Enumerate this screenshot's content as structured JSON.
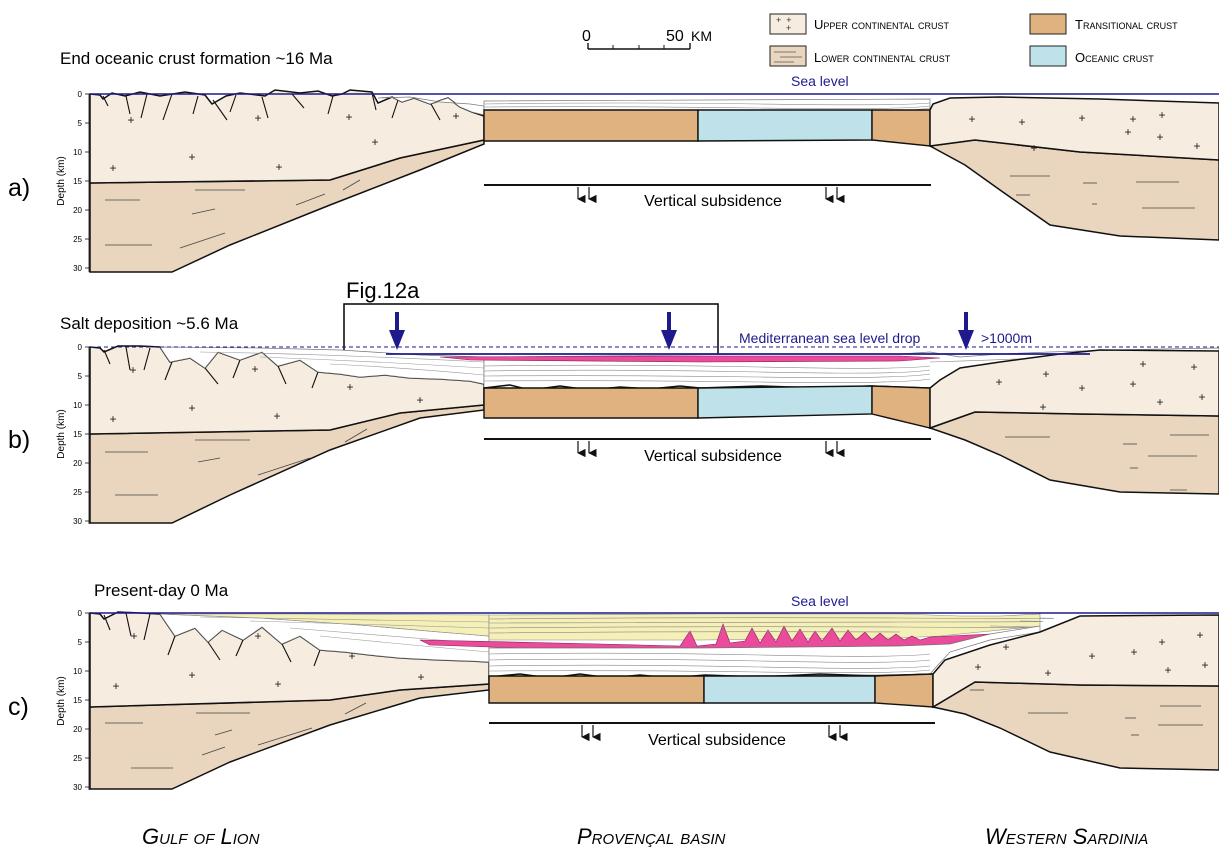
{
  "scale_bar": {
    "start": "0",
    "end": "50",
    "unit": "KM"
  },
  "legend": [
    {
      "key": "upper",
      "label": "Upper continental crust",
      "color": "#f6ede0"
    },
    {
      "key": "lower",
      "label": "Lower continental crust",
      "color": "#ead6bf"
    },
    {
      "key": "transitional",
      "label": "Transitional crust",
      "color": "#e0b27f"
    },
    {
      "key": "oceanic",
      "label": "Oceanic crust",
      "color": "#bfe2ea"
    }
  ],
  "colors": {
    "sea_line": "#1e1a8c",
    "salt": "#ea4b9a",
    "post_salt_sediment": "#f5f0b8",
    "syn_rift_sediment": "#ffffff"
  },
  "axis": {
    "ylabel": "Depth (km)",
    "ticks": [
      "0",
      "5",
      "10",
      "15",
      "20",
      "25",
      "30"
    ]
  },
  "panels": [
    {
      "letter": "a)",
      "title": "End oceanic crust formation ~16 Ma",
      "sea_label": "Sea level",
      "subsidence_label": "Vertical subsidence"
    },
    {
      "letter": "b)",
      "title": "Salt deposition ~5.6 Ma",
      "sea_label": "Mediterranean sea level drop",
      "sea_label_extra": ">1000m",
      "inset_label": "Fig.12a",
      "subsidence_label": "Vertical subsidence"
    },
    {
      "letter": "c)",
      "title": "Present-day 0 Ma",
      "sea_label": "Sea level",
      "subsidence_label": "Vertical subsidence"
    }
  ],
  "regions": [
    "Gulf of Lion",
    "Provençal basin",
    "Western Sardinia"
  ]
}
